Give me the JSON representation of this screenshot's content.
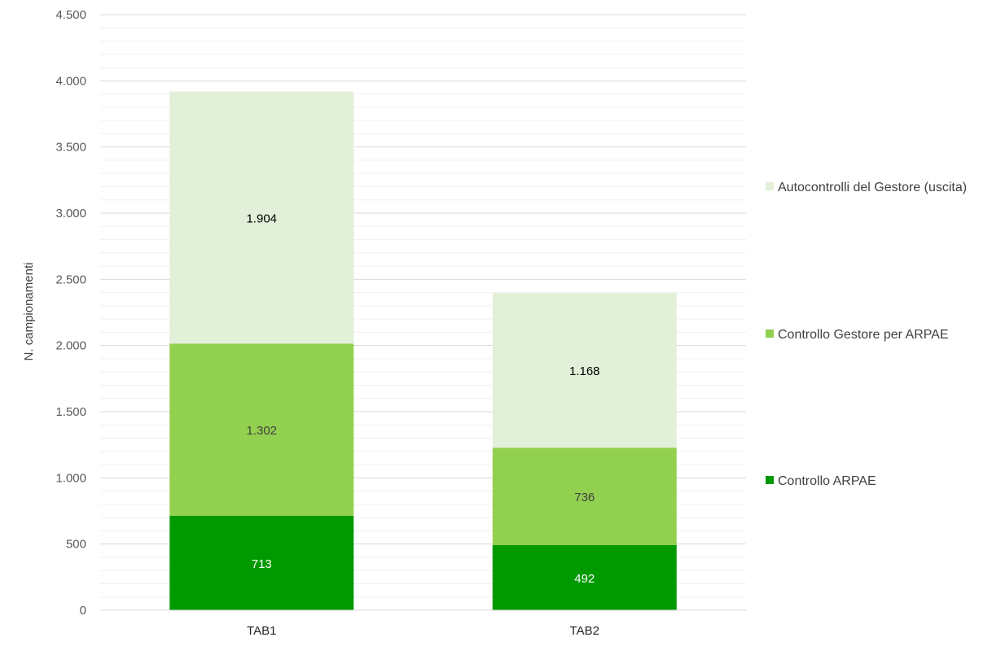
{
  "chart_data": {
    "type": "bar",
    "stacked": true,
    "categories": [
      "TAB1",
      "TAB2"
    ],
    "series": [
      {
        "name": "Controllo ARPAE",
        "values": [
          713,
          492
        ],
        "color": "#009900",
        "label_color": "#ffffff"
      },
      {
        "name": "Controllo Gestore per ARPAE",
        "values": [
          1302,
          736
        ],
        "color": "#92d050",
        "label_color": "#404040"
      },
      {
        "name": "Autocontrolli del Gestore (uscita)",
        "values": [
          1904,
          1168
        ],
        "color": "#e2efd9",
        "label_color": "#000000"
      }
    ],
    "data_labels": [
      [
        "713",
        "492"
      ],
      [
        "1.302",
        "736"
      ],
      [
        "1.904",
        "1.168"
      ]
    ],
    "ylabel": "N. campionamenti",
    "xlabel": "",
    "ylim": [
      0,
      4500
    ],
    "y_ticks": [
      0,
      500,
      1000,
      1500,
      2000,
      2500,
      3000,
      3500,
      4000,
      4500
    ],
    "y_tick_labels": [
      "0",
      "500",
      "1.000",
      "1.500",
      "2.000",
      "2.500",
      "3.000",
      "3.500",
      "4.000",
      "4.500"
    ],
    "grid": "major and minor horizontal",
    "legend_position": "right",
    "gridline_color": "#d9d9d9",
    "minor_gridline_color": "#f0f0f0"
  }
}
